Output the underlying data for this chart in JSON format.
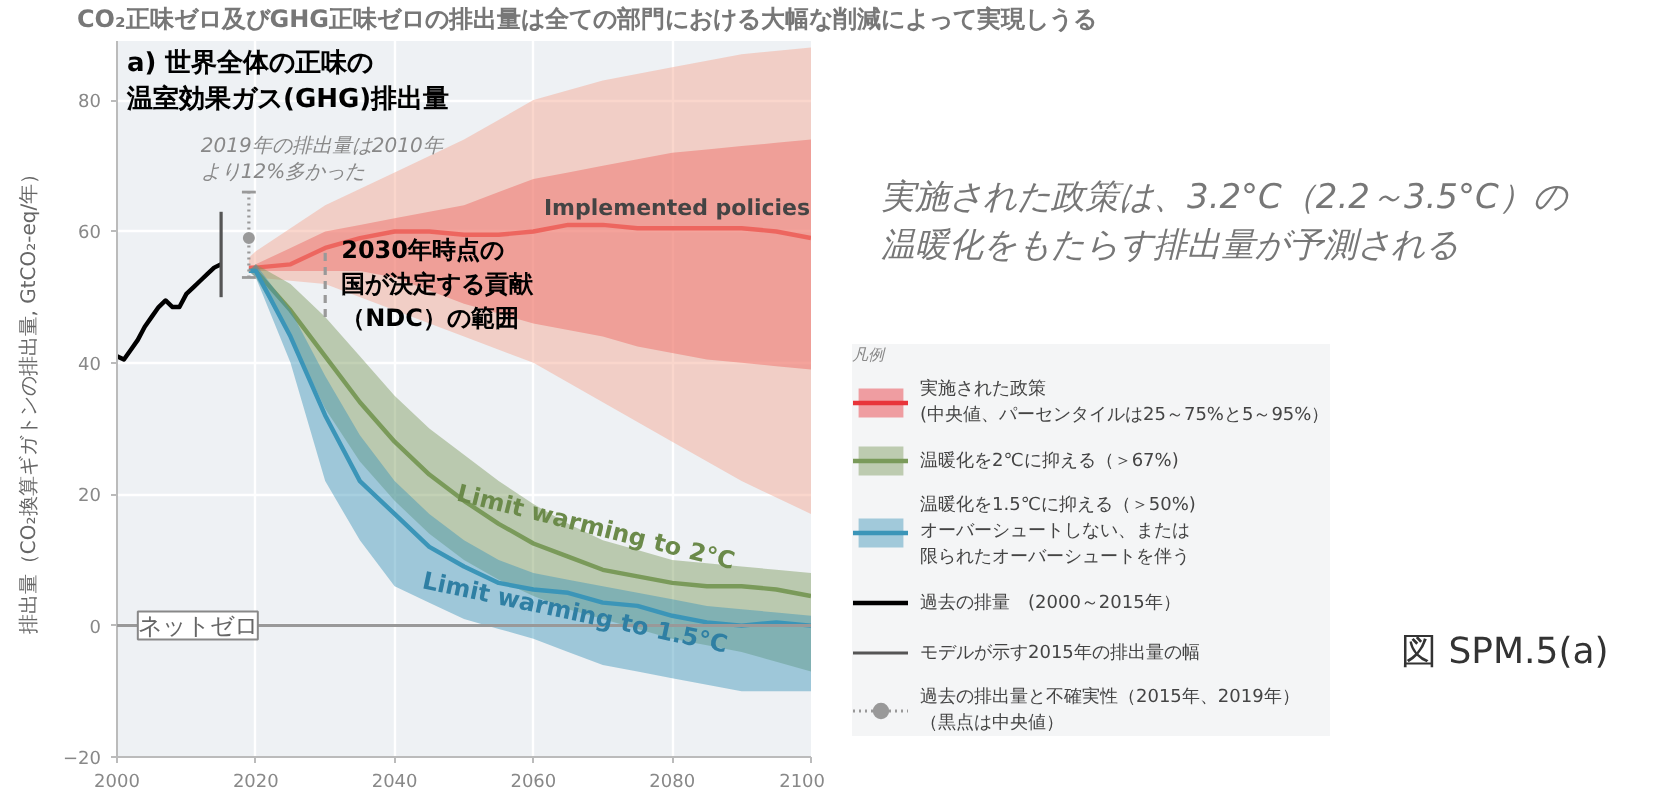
{
  "chart_data": {
    "type": "line",
    "title": "CO₂正味ゼロ及びGHG正味ゼロの排出量は全ての部門における大幅な削減によって実現しうる",
    "subtitle": "a) 世界全体の正味の温室効果ガス(GHG)排出量",
    "ylabel": "排出量（CO₂換算ギガトンの排出量, GtCO₂-eq/年）",
    "legend_title": "凡例",
    "xlim": [
      2000,
      2100
    ],
    "xticks": [
      2000,
      2020,
      2040,
      2060,
      2080,
      2100
    ],
    "ylim": [
      -20,
      89
    ],
    "yticks": [
      -20,
      0,
      20,
      40,
      60,
      80
    ],
    "grid": true,
    "legend": "right",
    "marker": "none",
    "line_style": "solid",
    "series": [
      {
        "name": "実施された政策\n(中央値、パーセンタイルは25～75%と5～95%）",
        "color": "#e8343a",
        "x": [
          2019,
          2020,
          2025,
          2030,
          2035,
          2040,
          2045,
          2050,
          2055,
          2060,
          2065,
          2070,
          2075,
          2080,
          2085,
          2090,
          2095,
          2100
        ],
        "values": [
          54.5,
          54.5,
          55,
          57.5,
          59,
          60,
          60,
          59.5,
          59.5,
          60,
          61,
          61,
          60.5,
          60.5,
          60.5,
          60.5,
          60,
          59
        ],
        "lower": [
          54.5,
          54,
          54,
          54,
          54,
          53,
          51,
          49,
          47.5,
          46,
          45,
          44,
          42.5,
          41.5,
          40.5,
          40,
          39.5,
          39
        ],
        "upper": [
          54.5,
          55,
          57.5,
          60,
          61,
          62,
          63,
          64,
          66,
          68,
          69,
          70,
          71,
          72,
          72.5,
          73,
          73.5,
          74
        ]
      },
      {
        "color": "#f4a48e",
        "x": [
          2019,
          2020,
          2030,
          2040,
          2050,
          2060,
          2070,
          2080,
          2090,
          2100
        ],
        "values": [
          null,
          null,
          null,
          null,
          null,
          null,
          null,
          null,
          null,
          null
        ],
        "lower": [
          54,
          53,
          52,
          48,
          44,
          40,
          34,
          28,
          22,
          17
        ],
        "upper": [
          56,
          57,
          64,
          69,
          74,
          80,
          83,
          85,
          87,
          88
        ]
      },
      {
        "name": "温暖化を2℃に抑える（＞67%)",
        "color": "#7a9a5a",
        "x": [
          2019,
          2020,
          2025,
          2030,
          2035,
          2040,
          2045,
          2050,
          2055,
          2060,
          2065,
          2070,
          2075,
          2080,
          2085,
          2090,
          2095,
          2100
        ],
        "values": [
          54,
          54,
          48,
          41,
          34,
          28,
          23,
          19,
          15.5,
          12.5,
          10.5,
          8.5,
          7.5,
          6.5,
          6,
          6,
          5.5,
          4.5
        ],
        "lower": [
          54,
          53,
          44,
          33,
          25,
          19,
          14,
          10,
          7,
          4.5,
          2.5,
          1,
          -0.5,
          -2,
          -3,
          -4,
          -5.5,
          -7
        ],
        "upper": [
          54,
          55,
          52,
          47,
          41,
          35,
          30,
          26,
          22,
          18.5,
          15.5,
          13,
          11.5,
          10,
          9.5,
          9,
          8.5,
          8
        ]
      },
      {
        "name": "温暖化を1.5℃に抑える（＞50%)オーバーシュートしない、または限られたオーバーシュートを伴う",
        "color": "#3b95b8",
        "x": [
          2019,
          2020,
          2025,
          2030,
          2035,
          2040,
          2045,
          2050,
          2055,
          2060,
          2065,
          2070,
          2075,
          2080,
          2085,
          2090,
          2095,
          2100
        ],
        "values": [
          54,
          54,
          44,
          32,
          22,
          17,
          12,
          9,
          6.5,
          5.5,
          5,
          3.5,
          3,
          1.5,
          0.5,
          0,
          0.5,
          0
        ],
        "lower": [
          54,
          53,
          40,
          22,
          13,
          6,
          3.5,
          1,
          -0.5,
          -2,
          -4,
          -6,
          -7,
          -8,
          -9,
          -10,
          -10,
          -10
        ],
        "upper": [
          54,
          55,
          48,
          38,
          29,
          22,
          17,
          13,
          10,
          8,
          7,
          6,
          5,
          4,
          3,
          2.5,
          2,
          1.5
        ]
      },
      {
        "name": "過去の排量　(2000～2015年）",
        "color": "#000000",
        "x": [
          2000,
          2001,
          2002,
          2003,
          2004,
          2005,
          2006,
          2007,
          2008,
          2009,
          2010,
          2011,
          2012,
          2013,
          2014,
          2015
        ],
        "values": [
          41,
          40.5,
          42,
          43.5,
          45.5,
          47,
          48.5,
          49.5,
          48.5,
          48.5,
          50.5,
          51.5,
          52.5,
          53.5,
          54.5,
          55
        ]
      },
      {
        "name": "モデルが示す2015年の排出量の幅",
        "color": "#555555",
        "x": [
          2015,
          2015
        ],
        "values": [
          50,
          63
        ]
      },
      {
        "name": "過去の排出量と不確実性（2015年、2019年）（黒点は中央値）",
        "type": "scatter",
        "marker": "circle",
        "line_style": "dotted",
        "color": "#999999",
        "x": [
          2019
        ],
        "values": [
          59
        ],
        "errors": [
          [
            53,
            66
          ]
        ]
      },
      {
        "line_style": "dashed",
        "color": "#999999",
        "x": [
          2030,
          2030
        ],
        "values": [
          47,
          57
        ]
      }
    ],
    "ref_lines": [
      {
        "axis": "y",
        "value": 0,
        "label": "ネットゼロ",
        "color": "#999999"
      }
    ],
    "annotations": [
      {
        "text": "2019年の排出量は2010年より12%多かった",
        "x": 2019,
        "y": 66
      },
      {
        "text": "2030年時点の国が決定する貢献（NDC）の範囲",
        "x": 2030,
        "y": 52
      },
      "Implemented policies",
      {
        "text": "Limit warming to 2°C",
        "x": 2069,
        "y": 15
      },
      {
        "text": "Limit warming to 1.5°C",
        "x": 2066,
        "y": 2
      },
      "実施された政策は、3.2°C（2.2～3.5°C）の温暖化をもたらす排出量が予測される",
      "図 SPM.5(a)"
    ]
  }
}
